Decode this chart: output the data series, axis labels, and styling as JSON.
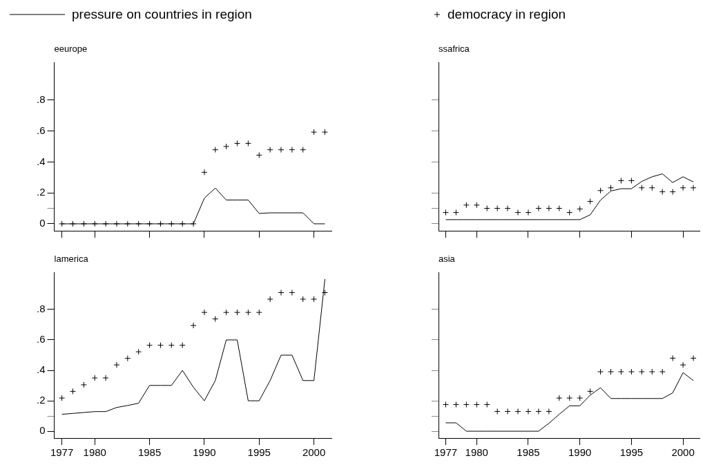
{
  "chart_data": [
    {
      "type": "line",
      "title": "eeurope",
      "legend": "top",
      "tick_labels": "y",
      "x": [
        1977,
        1978,
        1979,
        1980,
        1981,
        1982,
        1983,
        1984,
        1985,
        1986,
        1987,
        1988,
        1989,
        1990,
        1991,
        1992,
        1993,
        1994,
        1995,
        1996,
        1997,
        1998,
        1999,
        2000,
        2001
      ],
      "xlim": [
        1976.3,
        2001.6
      ],
      "xticks": [
        {
          "value": 1977,
          "label": null
        },
        {
          "value": 1980,
          "label": null
        },
        {
          "value": 1985,
          "label": null
        },
        {
          "value": 1990,
          "label": null
        },
        {
          "value": 1995,
          "label": null
        },
        {
          "value": 2000,
          "label": null
        }
      ],
      "ylim": [
        -0.045,
        1.045
      ],
      "yticks": [
        {
          "value": 0,
          "label": "0"
        },
        {
          "value": 0.1,
          "label": null
        },
        {
          "value": 0.2,
          "label": ".2"
        },
        {
          "value": 0.4,
          "label": ".4"
        },
        {
          "value": 0.6,
          "label": ".6"
        },
        {
          "value": 0.8,
          "label": ".8"
        }
      ],
      "series": [
        {
          "name": "pressure on countries in region",
          "type": "line",
          "marker": "none",
          "color": "#000000",
          "values": [
            0,
            0,
            0,
            0,
            0,
            0,
            0,
            0,
            0,
            0,
            0,
            0,
            0,
            0.166,
            0.231,
            0.154,
            0.154,
            0.154,
            0.067,
            0.071,
            0.071,
            0.071,
            0.071,
            0,
            0
          ]
        },
        {
          "name": "democracy in region",
          "type": "scatter",
          "marker": "cross",
          "color": "#000000",
          "values": [
            0,
            0,
            0,
            0,
            0,
            0,
            0,
            0,
            0,
            0,
            0,
            0,
            0,
            0.333,
            0.479,
            0.5,
            0.52,
            0.52,
            0.444,
            0.479,
            0.479,
            0.479,
            0.479,
            0.593,
            0.593
          ]
        }
      ]
    },
    {
      "type": "line",
      "title": "ssafrica",
      "tick_labels": false,
      "x": [
        1977,
        1978,
        1979,
        1980,
        1981,
        1982,
        1983,
        1984,
        1985,
        1986,
        1987,
        1988,
        1989,
        1990,
        1991,
        1992,
        1993,
        1994,
        1995,
        1996,
        1997,
        1998,
        1999,
        2000,
        2001
      ],
      "xlim": [
        1976.3,
        2001.6
      ],
      "xticks": [
        {
          "value": 1977,
          "label": null
        },
        {
          "value": 1980,
          "label": null
        },
        {
          "value": 1985,
          "label": null
        },
        {
          "value": 1990,
          "label": null
        },
        {
          "value": 1995,
          "label": null
        },
        {
          "value": 2000,
          "label": null
        }
      ],
      "ylim": [
        -0.045,
        1.045
      ],
      "yticks": [
        {
          "value": 0,
          "label": null
        },
        {
          "value": 0.1,
          "label": null
        },
        {
          "value": 0.2,
          "label": null
        },
        {
          "value": 0.4,
          "label": null
        },
        {
          "value": 0.6,
          "label": null
        },
        {
          "value": 0.8,
          "label": null
        }
      ],
      "series": [
        {
          "type": "line",
          "marker": "none",
          "color": "#000000",
          "values": [
            0.027,
            0.027,
            0.027,
            0.027,
            0.027,
            0.027,
            0.027,
            0.027,
            0.027,
            0.027,
            0.027,
            0.027,
            0.027,
            0.027,
            0.058,
            0.153,
            0.212,
            0.227,
            0.227,
            0.274,
            0.304,
            0.323,
            0.267,
            0.304,
            0.271
          ]
        },
        {
          "type": "scatter",
          "marker": "cross",
          "color": "#000000",
          "values": [
            0.073,
            0.073,
            0.121,
            0.121,
            0.1,
            0.1,
            0.1,
            0.073,
            0.073,
            0.1,
            0.1,
            0.1,
            0.073,
            0.096,
            0.145,
            0.215,
            0.233,
            0.279,
            0.279,
            0.233,
            0.233,
            0.207,
            0.207,
            0.233,
            0.233
          ]
        }
      ]
    },
    {
      "type": "line",
      "title": "lamerica",
      "x": [
        1977,
        1978,
        1979,
        1980,
        1981,
        1982,
        1983,
        1984,
        1985,
        1986,
        1987,
        1988,
        1989,
        1990,
        1991,
        1992,
        1993,
        1994,
        1995,
        1996,
        1997,
        1998,
        1999,
        2000,
        2001
      ],
      "xlim": [
        1976.3,
        2001.6
      ],
      "xticks": [
        1977,
        1980,
        1985,
        1990,
        1995,
        2000
      ],
      "ylim": [
        -0.045,
        1.045
      ],
      "yticks": [
        {
          "value": 0,
          "label": "0"
        },
        {
          "value": 0.1,
          "label": null
        },
        {
          "value": 0.2,
          "label": ".2"
        },
        {
          "value": 0.4,
          "label": ".4"
        },
        {
          "value": 0.6,
          "label": ".6"
        },
        {
          "value": 0.8,
          "label": ".8"
        }
      ],
      "series": [
        {
          "type": "line",
          "marker": "none",
          "color": "#000000",
          "values": [
            0.111,
            0.117,
            0.123,
            0.129,
            0.129,
            0.156,
            0.169,
            0.184,
            0.301,
            0.301,
            0.301,
            0.4,
            0.289,
            0.2,
            0.333,
            0.6,
            0.6,
            0.2,
            0.2,
            0.333,
            0.5,
            0.5,
            0.333,
            0.333,
            1.0
          ]
        },
        {
          "type": "scatter",
          "marker": "cross",
          "color": "#000000",
          "values": [
            0.218,
            0.262,
            0.305,
            0.35,
            0.35,
            0.436,
            0.479,
            0.522,
            0.565,
            0.565,
            0.565,
            0.565,
            0.695,
            0.781,
            0.738,
            0.781,
            0.781,
            0.781,
            0.781,
            0.868,
            0.911,
            0.911,
            0.868,
            0.868,
            0.911
          ]
        }
      ]
    },
    {
      "type": "line",
      "title": "asia",
      "tick_labels": "x",
      "x": [
        1977,
        1978,
        1979,
        1980,
        1981,
        1982,
        1983,
        1984,
        1985,
        1986,
        1987,
        1988,
        1989,
        1990,
        1991,
        1992,
        1993,
        1994,
        1995,
        1996,
        1997,
        1998,
        1999,
        2000,
        2001
      ],
      "xlim": [
        1976.3,
        2001.6
      ],
      "xticks": [
        1977,
        1980,
        1985,
        1990,
        1995,
        2000
      ],
      "ylim": [
        -0.045,
        1.045
      ],
      "yticks": [
        {
          "value": 0,
          "label": null
        },
        {
          "value": 0.1,
          "label": null
        },
        {
          "value": 0.2,
          "label": null
        },
        {
          "value": 0.4,
          "label": null
        },
        {
          "value": 0.6,
          "label": null
        },
        {
          "value": 0.8,
          "label": null
        }
      ],
      "series": [
        {
          "type": "line",
          "marker": "none",
          "color": "#000000",
          "values": [
            0.055,
            0.055,
            0,
            0,
            0,
            0,
            0,
            0,
            0,
            0,
            0.052,
            0.111,
            0.167,
            0.167,
            0.237,
            0.286,
            0.215,
            0.215,
            0.215,
            0.215,
            0.215,
            0.215,
            0.252,
            0.385,
            0.333
          ]
        },
        {
          "type": "scatter",
          "marker": "cross",
          "color": "#000000",
          "values": [
            0.175,
            0.175,
            0.175,
            0.175,
            0.175,
            0.13,
            0.13,
            0.13,
            0.13,
            0.13,
            0.13,
            0.218,
            0.218,
            0.218,
            0.262,
            0.391,
            0.391,
            0.391,
            0.391,
            0.391,
            0.391,
            0.391,
            0.48,
            0.436,
            0.48
          ]
        }
      ]
    }
  ]
}
